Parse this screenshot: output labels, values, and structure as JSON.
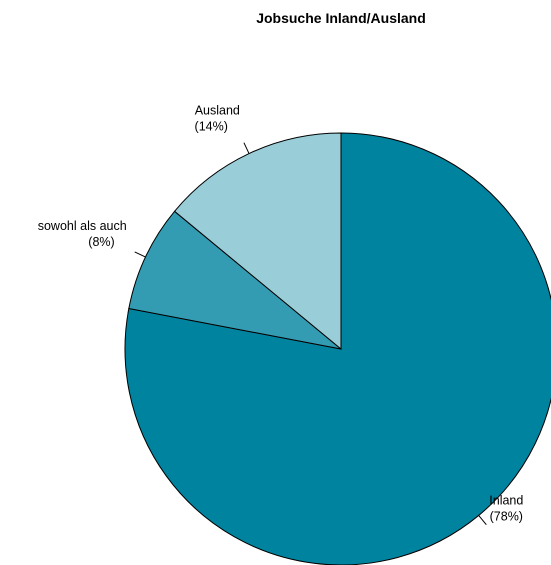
{
  "chart_data": {
    "type": "pie",
    "title": "Jobsuche Inland/Ausland",
    "slices": [
      {
        "label": "Inland",
        "percent_label": "(78%)",
        "value": 78,
        "color": "#00839F"
      },
      {
        "label": "sowohl als auch",
        "percent_label": "(8%)",
        "value": 8,
        "color": "#339CB2"
      },
      {
        "label": "Ausland",
        "percent_label": "(14%)",
        "value": 14,
        "color": "#99CED9"
      }
    ]
  }
}
